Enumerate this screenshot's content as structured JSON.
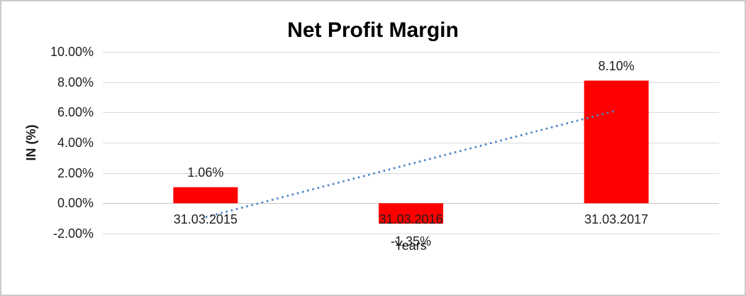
{
  "title": "Net Profit Margin",
  "chart_data": {
    "type": "bar",
    "title": "Net Profit Margin",
    "xlabel": "Years",
    "ylabel": "IN (%)",
    "categories": [
      "31.03.2015",
      "31.03.2016",
      "31.03.2017"
    ],
    "series": [
      {
        "name": "Net Profit Margin",
        "values": [
          1.06,
          -1.35,
          8.1
        ]
      }
    ],
    "data_labels": [
      "1.06%",
      "-1.35%",
      "8.10%"
    ],
    "ylim": [
      -2,
      10
    ],
    "ytick_step": 2,
    "ytick_labels": [
      "10.00%",
      "8.00%",
      "6.00%",
      "4.00%",
      "2.00%",
      "0.00%",
      "-2.00%"
    ],
    "grid": true,
    "legend": "none",
    "trendline": {
      "type": "linear",
      "style": "dotted"
    },
    "colors": {
      "bar": "#ff0000",
      "trendline": "#4e86c6",
      "gridline": "#d9d9d9",
      "zero_axis": "#c6c6c6",
      "text": "#1f1f1f",
      "title": "#000000",
      "frame_border": "#cbcbcb",
      "background": "#ffffff"
    }
  }
}
